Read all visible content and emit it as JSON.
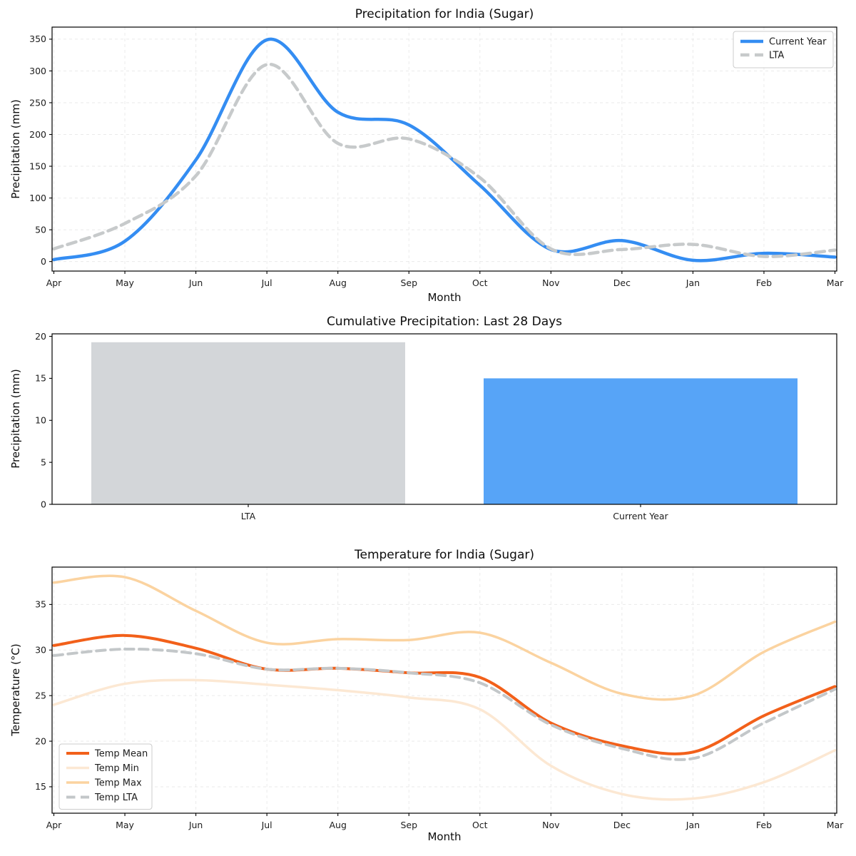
{
  "figure": {
    "background": "#ffffff",
    "text_color": "#1c1c1c"
  },
  "chart_data": [
    {
      "id": "precip-line",
      "type": "line",
      "title": "Precipitation for India (Sugar)",
      "xlabel": "Month",
      "ylabel": "Precipitation (mm)",
      "categories": [
        "Apr",
        "May",
        "Jun",
        "Jul",
        "Aug",
        "Sep",
        "Oct",
        "Nov",
        "Dec",
        "Jan",
        "Feb",
        "Mar"
      ],
      "ylim": [
        -15,
        369
      ],
      "yticks": [
        0,
        50,
        100,
        150,
        200,
        250,
        300,
        350
      ],
      "grid": true,
      "legend_position": "top-right",
      "series": [
        {
          "name": "Current Year",
          "color": "#348df2",
          "style": "solid",
          "width": 4.5,
          "values": [
            3,
            32,
            160,
            349,
            235,
            215,
            120,
            19,
            33,
            2,
            13,
            7
          ]
        },
        {
          "name": "LTA",
          "color": "#c7cacb",
          "style": "dashed",
          "width": 4.5,
          "values": [
            20,
            60,
            135,
            310,
            186,
            193,
            132,
            20,
            19,
            27,
            8,
            18
          ]
        }
      ]
    },
    {
      "id": "precip-bar",
      "type": "bar",
      "title": "Cumulative Precipitation: Last 28 Days",
      "xlabel": "",
      "ylabel": "Precipitation (mm)",
      "categories": [
        "LTA",
        "Current Year"
      ],
      "values": [
        19.3,
        15.0
      ],
      "colors": [
        "#d3d6d9",
        "#57a4f7"
      ],
      "ylim": [
        0,
        20.3
      ],
      "yticks": [
        0,
        5,
        10,
        15,
        20
      ],
      "grid": false
    },
    {
      "id": "temp-line",
      "type": "line",
      "title": "Temperature for India (Sugar)",
      "xlabel": "Month",
      "ylabel": "Temperature (°C)",
      "categories": [
        "Apr",
        "May",
        "Jun",
        "Jul",
        "Aug",
        "Sep",
        "Oct",
        "Nov",
        "Dec",
        "Jan",
        "Feb",
        "Mar"
      ],
      "ylim": [
        12.1,
        39.1
      ],
      "yticks": [
        15,
        20,
        25,
        30,
        35
      ],
      "grid": true,
      "legend_position": "bottom-left",
      "series": [
        {
          "name": "Temp Mean",
          "color": "#f2601a",
          "style": "solid",
          "width": 4,
          "values": [
            30.5,
            31.6,
            30.2,
            27.9,
            28.0,
            27.5,
            27.0,
            22.0,
            19.5,
            18.8,
            22.8,
            26.0
          ]
        },
        {
          "name": "Temp Min",
          "color": "#fce8d3",
          "style": "solid",
          "width": 3.5,
          "values": [
            24.0,
            26.3,
            26.7,
            26.2,
            25.6,
            24.8,
            23.5,
            17.3,
            14.2,
            13.7,
            15.5,
            19.0
          ]
        },
        {
          "name": "Temp Max",
          "color": "#fbd3a0",
          "style": "solid",
          "width": 3.5,
          "values": [
            37.4,
            38.0,
            34.3,
            30.8,
            31.2,
            31.1,
            31.9,
            28.6,
            25.2,
            25.0,
            29.8,
            33.1
          ]
        },
        {
          "name": "Temp LTA",
          "color": "#c3c7c9",
          "style": "dashed",
          "width": 4,
          "values": [
            29.4,
            30.1,
            29.6,
            27.9,
            28.0,
            27.5,
            26.4,
            21.8,
            19.2,
            18.1,
            22.0,
            25.7
          ]
        }
      ]
    }
  ]
}
